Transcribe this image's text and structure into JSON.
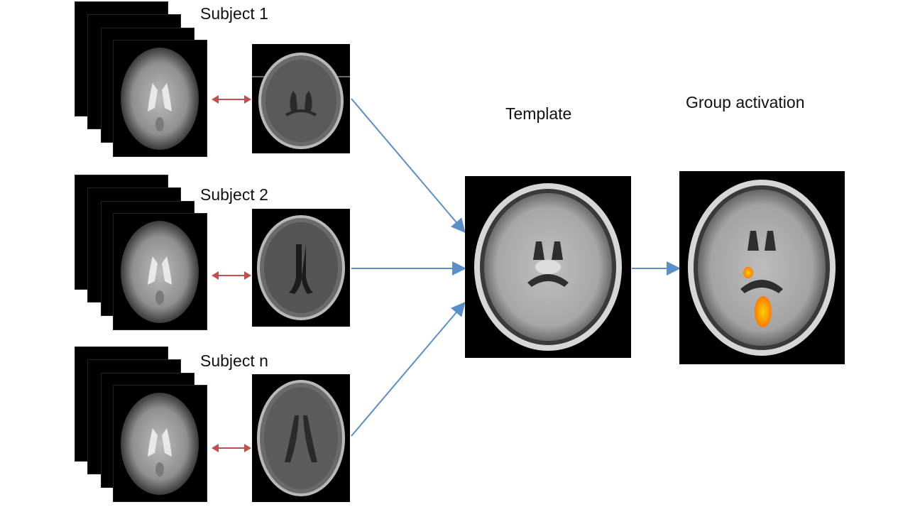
{
  "subjects": [
    {
      "label": "Subject 1",
      "variant": "s1"
    },
    {
      "label": "Subject 2",
      "variant": "s2"
    },
    {
      "label": "Subject n",
      "variant": "sn"
    }
  ],
  "template": {
    "label": "Template"
  },
  "group": {
    "label": "Group activation"
  },
  "colors": {
    "flow_arrow": "#5b8fc9",
    "registration_arrow": "#c0504d",
    "activation": "#ff8c00"
  },
  "icons": {
    "epi_stack": "functional-scan-stack",
    "anatomical": "anatomical-brain-slice",
    "template": "template-brain",
    "activation_map": "activation-overlay-brain"
  }
}
